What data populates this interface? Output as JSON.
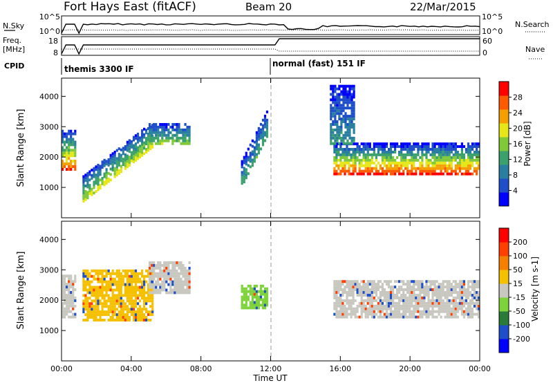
{
  "header": {
    "station": "Fort Hays East (fitACF)",
    "beam": "Beam 20",
    "date": "22/Mar/2015"
  },
  "top_panel": {
    "nsky": {
      "label": "N.Sky",
      "ticks": [
        "10^5",
        "10^0"
      ],
      "right_ticks": [
        "10^5",
        "10^0"
      ],
      "right_label": "N.Search"
    },
    "freq": {
      "label_line1": "Freq.",
      "label_line2": "[MHz]",
      "ticks": [
        "18",
        "8"
      ],
      "right_ticks": [
        "60",
        "0"
      ],
      "right_label": "Nave"
    },
    "cpid": {
      "label": "CPID",
      "modes": [
        {
          "name": "themis 3300 IF",
          "start_hour": 0
        },
        {
          "name": "normal (fast) 151 IF",
          "start_hour": 12
        }
      ]
    }
  },
  "time_axis": {
    "title": "Time UT",
    "ticks": [
      "00:00",
      "04:00",
      "08:00",
      "12:00",
      "16:00",
      "20:00",
      "00:00"
    ]
  },
  "chart_data": [
    {
      "type": "heatmap",
      "name": "power",
      "ylabel": "Slant Range [km]",
      "xlim": [
        0,
        24
      ],
      "ylim": [
        0,
        4600
      ],
      "yticks": [
        "1000",
        "2000",
        "3000",
        "4000"
      ],
      "colorbar": {
        "label": "Power [dB]",
        "ticks": [
          "28",
          "24",
          "20",
          "16",
          "12",
          "8",
          "4"
        ],
        "colors": [
          "#0000ff",
          "#1f4fc8",
          "#2a7fa0",
          "#3aa06c",
          "#7ec83a",
          "#e6e619",
          "#f5a000",
          "#ff5a00",
          "#ff0000"
        ]
      },
      "regions": [
        {
          "t0": 0.0,
          "t1": 0.8,
          "r0": 1550,
          "r1": 2900,
          "level": 0.8
        },
        {
          "t0": 1.2,
          "t1": 5.2,
          "r0": 1000,
          "r1": 2800,
          "level": 0.55,
          "slope": true
        },
        {
          "t0": 5.0,
          "t1": 7.4,
          "r0": 2400,
          "r1": 3100,
          "level": 0.45
        },
        {
          "t0": 10.3,
          "t1": 11.8,
          "r0": 1500,
          "r1": 3200,
          "level": 0.35,
          "slope": true
        },
        {
          "t0": 15.6,
          "t1": 24.0,
          "r0": 1400,
          "r1": 2400,
          "level": 0.85
        },
        {
          "t0": 15.4,
          "t1": 16.8,
          "r0": 2400,
          "r1": 4300,
          "level": 0.3
        }
      ]
    },
    {
      "type": "heatmap",
      "name": "velocity",
      "ylabel": "Slant Range [km]",
      "xlim": [
        0,
        24
      ],
      "ylim": [
        0,
        4600
      ],
      "yticks": [
        "1000",
        "2000",
        "3000",
        "4000"
      ],
      "colorbar": {
        "label": "Velocity [m s-1]",
        "ticks": [
          "200",
          "100",
          "50",
          "15",
          "-15",
          "-50",
          "-100",
          "-200"
        ],
        "colors": [
          "#0000ff",
          "#1f4fc8",
          "#2a7a3a",
          "#7ed23a",
          "#c8c8c0",
          "#f5c000",
          "#f58000",
          "#ff4000",
          "#ff0000"
        ]
      },
      "regions": [
        {
          "t0": 0.0,
          "t1": 0.8,
          "r0": 1400,
          "r1": 2800,
          "level": "grey"
        },
        {
          "t0": 1.2,
          "t1": 5.2,
          "r0": 1300,
          "r1": 3000,
          "level": "orange"
        },
        {
          "t0": 5.0,
          "t1": 7.4,
          "r0": 2200,
          "r1": 3200,
          "level": "grey"
        },
        {
          "t0": 10.3,
          "t1": 11.8,
          "r0": 1700,
          "r1": 2500,
          "level": "green"
        },
        {
          "t0": 15.6,
          "t1": 24.0,
          "r0": 1400,
          "r1": 2600,
          "level": "grey"
        }
      ]
    }
  ]
}
